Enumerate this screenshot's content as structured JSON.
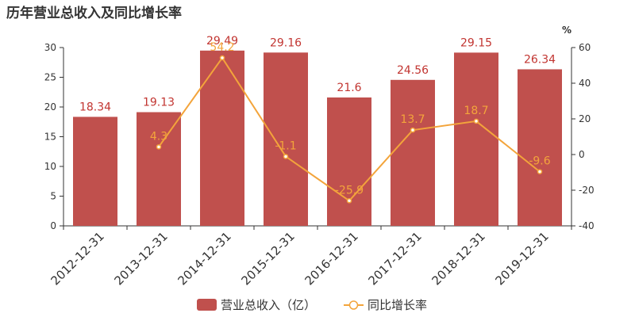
{
  "chart_data": {
    "type": "bar",
    "title": "历年营业总收入及同比增长率",
    "categories": [
      "2012-12-31",
      "2013-12-31",
      "2014-12-31",
      "2015-12-31",
      "2016-12-31",
      "2017-12-31",
      "2018-12-31",
      "2019-12-31"
    ],
    "series": [
      {
        "name": "营业总收入（亿）",
        "type": "bar",
        "axis": "left",
        "values": [
          18.34,
          19.13,
          29.49,
          29.16,
          21.6,
          24.56,
          29.15,
          26.34
        ],
        "labels": [
          "18.34",
          "19.13",
          "29.49",
          "29.16",
          "21.6",
          "24.56",
          "29.15",
          "26.34"
        ]
      },
      {
        "name": "同比增长率",
        "type": "line",
        "axis": "right",
        "values": [
          null,
          4.3,
          54.2,
          -1.1,
          -25.9,
          13.7,
          18.7,
          -9.6
        ],
        "labels": [
          "",
          "4.3",
          "54.2",
          "-1.1",
          "-25.9",
          "13.7",
          "18.7",
          "-9.6"
        ]
      }
    ],
    "y_left": {
      "min": 0,
      "max": 30,
      "ticks": [
        "0",
        "5",
        "10",
        "15",
        "20",
        "25",
        "30"
      ]
    },
    "y_right": {
      "min": -40,
      "max": 60,
      "ticks": [
        "-40",
        "-20",
        "0",
        "20",
        "40",
        "60"
      ],
      "unit": "%"
    },
    "legend_position": "bottom-center",
    "grid": false,
    "colors": {
      "bar": "#c0504d",
      "bar_label": "#c23531",
      "line": "#f3a43b",
      "axis": "#333333"
    }
  }
}
